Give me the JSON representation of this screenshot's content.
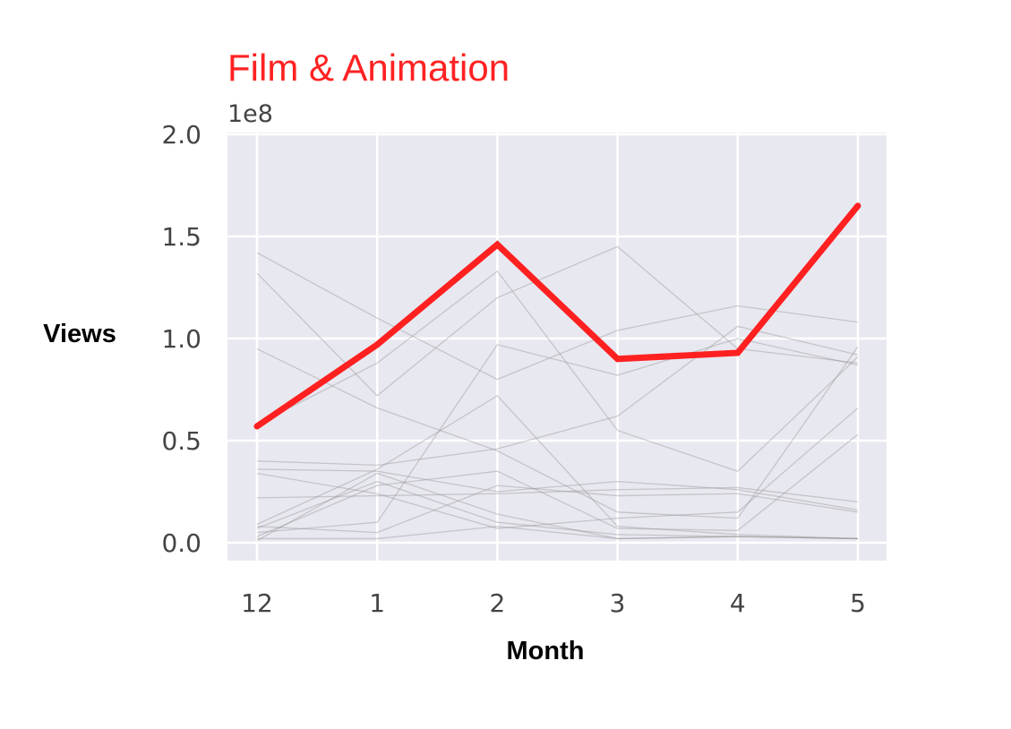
{
  "chart_data": {
    "type": "line",
    "title": "Film & Animation",
    "xlabel": "Month",
    "ylabel": "Views",
    "y_offset_label": "1e8",
    "categories": [
      "12",
      "1",
      "2",
      "3",
      "4",
      "5"
    ],
    "ylim": [
      -0.08,
      2.0
    ],
    "yticks": [
      0.0,
      0.5,
      1.0,
      1.5,
      2.0
    ],
    "ytick_labels": [
      "0.0",
      "0.5",
      "1.0",
      "1.5",
      "2.0"
    ],
    "grid": true,
    "highlight_series": {
      "values": [
        0.57,
        0.97,
        1.46,
        0.9,
        0.93,
        1.65
      ],
      "color": "#ff2020"
    },
    "background_series": [
      {
        "values": [
          1.42,
          1.1,
          0.8,
          1.04,
          1.16,
          1.08
        ]
      },
      {
        "values": [
          1.32,
          0.72,
          1.2,
          1.45,
          0.95,
          0.88
        ]
      },
      {
        "values": [
          0.95,
          0.66,
          0.45,
          0.15,
          0.12,
          0.96
        ]
      },
      {
        "values": [
          0.58,
          0.88,
          1.33,
          0.55,
          0.35,
          0.91
        ]
      },
      {
        "values": [
          0.4,
          0.38,
          0.46,
          0.62,
          1.06,
          0.92
        ]
      },
      {
        "values": [
          0.36,
          0.35,
          0.25,
          0.3,
          0.26,
          0.16
        ]
      },
      {
        "values": [
          0.34,
          0.24,
          0.07,
          0.12,
          0.15,
          0.66
        ]
      },
      {
        "values": [
          0.22,
          0.23,
          0.24,
          0.26,
          0.27,
          0.2
        ]
      },
      {
        "values": [
          0.09,
          0.36,
          0.72,
          0.08,
          0.04,
          0.02
        ]
      },
      {
        "values": [
          0.05,
          0.1,
          0.97,
          0.82,
          1.0,
          0.87
        ]
      },
      {
        "values": [
          0.03,
          0.28,
          0.35,
          0.07,
          0.06,
          0.53
        ]
      },
      {
        "values": [
          0.02,
          0.02,
          0.08,
          0.02,
          0.03,
          0.02
        ]
      },
      {
        "values": [
          0.01,
          0.34,
          0.14,
          0.02,
          0.03,
          0.02
        ]
      },
      {
        "values": [
          0.07,
          0.3,
          0.1,
          0.04,
          0.03,
          0.02
        ]
      },
      {
        "values": [
          0.08,
          0.05,
          0.28,
          0.23,
          0.24,
          0.15
        ]
      }
    ],
    "colors": {
      "plot_background": "#e8e8f0",
      "grid": "#ffffff",
      "background_lines": "#9a9a9a",
      "title": "#ff2222"
    }
  }
}
